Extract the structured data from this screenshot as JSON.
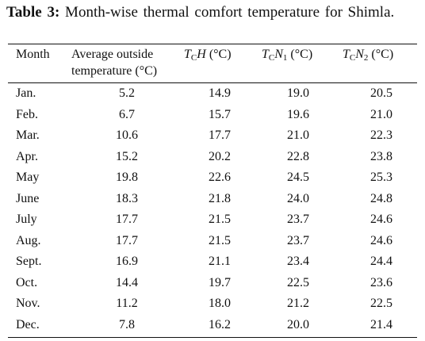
{
  "caption": {
    "label": "Table 3:",
    "text": "Month-wise thermal comfort temperature for Shimla."
  },
  "headers": {
    "month": "Month",
    "avg_line1": "Average outside",
    "avg_line2": "temperature (°C)",
    "th_T": "T",
    "th_sub": "C",
    "th_var": "H",
    "th_unit": " (°C)",
    "tn1_T": "T",
    "tn1_sub": "C",
    "tn1_var": "N",
    "tn1_idx": "1",
    "tn1_unit": " (°C)",
    "tn2_T": "T",
    "tn2_sub": "C",
    "tn2_var": "N",
    "tn2_idx": "2",
    "tn2_unit": " (°C)"
  },
  "rows": [
    {
      "month": "Jan.",
      "avg": "5.2",
      "th": "14.9",
      "tn1": "19.0",
      "tn2": "20.5"
    },
    {
      "month": "Feb.",
      "avg": "6.7",
      "th": "15.7",
      "tn1": "19.6",
      "tn2": "21.0"
    },
    {
      "month": "Mar.",
      "avg": "10.6",
      "th": "17.7",
      "tn1": "21.0",
      "tn2": "22.3"
    },
    {
      "month": "Apr.",
      "avg": "15.2",
      "th": "20.2",
      "tn1": "22.8",
      "tn2": "23.8"
    },
    {
      "month": "May",
      "avg": "19.8",
      "th": "22.6",
      "tn1": "24.5",
      "tn2": "25.3"
    },
    {
      "month": "June",
      "avg": "18.3",
      "th": "21.8",
      "tn1": "24.0",
      "tn2": "24.8"
    },
    {
      "month": "July",
      "avg": "17.7",
      "th": "21.5",
      "tn1": "23.7",
      "tn2": "24.6"
    },
    {
      "month": "Aug.",
      "avg": "17.7",
      "th": "21.5",
      "tn1": "23.7",
      "tn2": "24.6"
    },
    {
      "month": "Sept.",
      "avg": "16.9",
      "th": "21.1",
      "tn1": "23.4",
      "tn2": "24.4"
    },
    {
      "month": "Oct.",
      "avg": "14.4",
      "th": "19.7",
      "tn1": "22.5",
      "tn2": "23.6"
    },
    {
      "month": "Nov.",
      "avg": "11.2",
      "th": "18.0",
      "tn1": "21.2",
      "tn2": "22.5"
    },
    {
      "month": "Dec.",
      "avg": "7.8",
      "th": "16.2",
      "tn1": "20.0",
      "tn2": "21.4"
    }
  ]
}
